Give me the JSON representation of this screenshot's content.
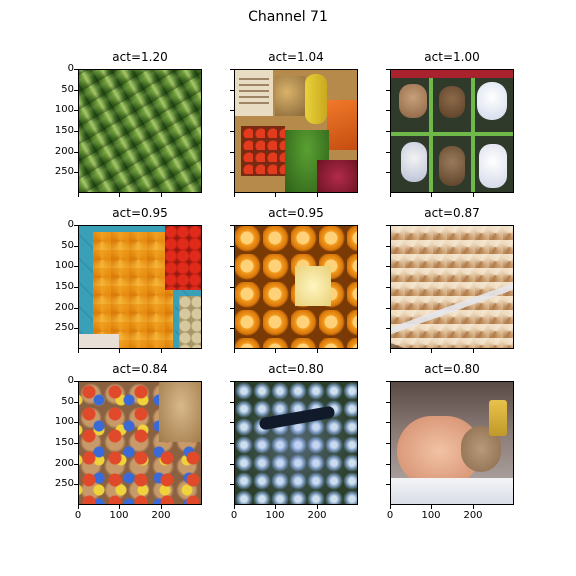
{
  "figure": {
    "title": "Channel 71"
  },
  "panels": [
    {
      "title": "act=1.20",
      "image": "cucumbers"
    },
    {
      "title": "act=1.04",
      "image": "vegetables-market"
    },
    {
      "title": "act=1.00",
      "image": "teddy-bears-boxes"
    },
    {
      "title": "act=0.95",
      "image": "cut-squash"
    },
    {
      "title": "act=0.95",
      "image": "oranges"
    },
    {
      "title": "act=0.87",
      "image": "bread-cubes"
    },
    {
      "title": "act=0.84",
      "image": "stuffed-toys-pile"
    },
    {
      "title": "act=0.80",
      "image": "abstract-collage"
    },
    {
      "title": "act=0.80",
      "image": "baby-photo"
    }
  ],
  "axes": {
    "y_ticks": [
      "0",
      "50",
      "100",
      "150",
      "200",
      "250"
    ],
    "x_ticks": [
      "0",
      "100",
      "200"
    ]
  }
}
